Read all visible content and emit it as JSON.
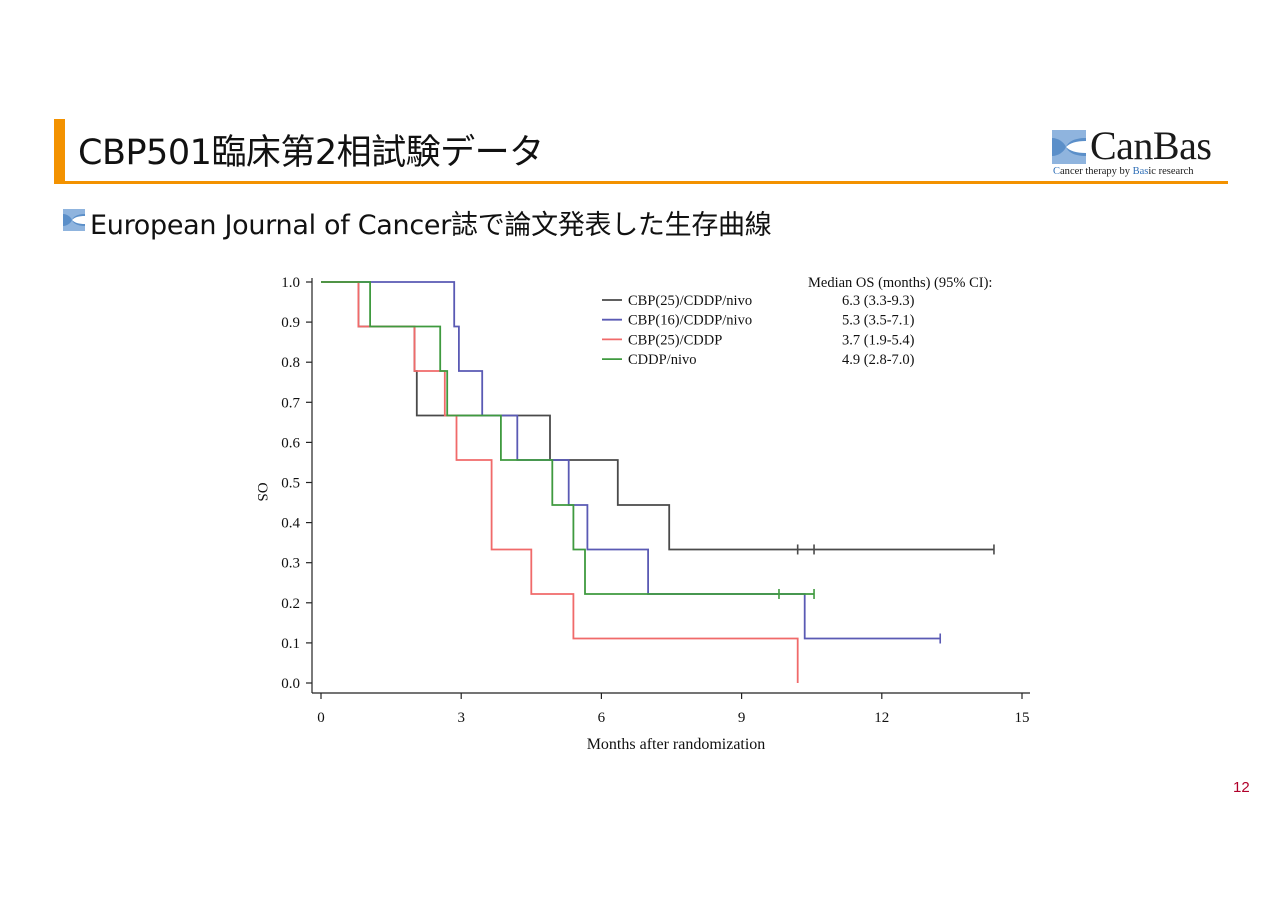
{
  "slide": {
    "title": "CBP501臨床第2相試験データ",
    "subtitle": "European Journal of Cancer誌で論文発表した生存曲線",
    "page_number": "12"
  },
  "logo": {
    "name": "CanBas",
    "tagline_prefix": "C",
    "tagline_1": "an",
    "tagline_2": "cer therapy by ",
    "tagline_3": "Bas",
    "tagline_4": "ic research",
    "accent_color": "#2f6fb7"
  },
  "chart_data": {
    "type": "line",
    "subtype": "kaplan-meier",
    "xlabel": "Months after randomization",
    "ylabel": "OS",
    "xlim": [
      0,
      15
    ],
    "ylim": [
      0,
      1
    ],
    "xticks": [
      0,
      3,
      6,
      9,
      12,
      15
    ],
    "yticks": [
      0.0,
      0.1,
      0.2,
      0.3,
      0.4,
      0.5,
      0.6,
      0.7,
      0.8,
      0.9,
      1.0
    ],
    "ytick_labels": [
      "0.0",
      "0.1",
      "0.2",
      "0.3",
      "0.4",
      "0.5",
      "0.6",
      "0.7",
      "0.8",
      "0.9",
      "1.0"
    ],
    "grid": false,
    "legend_header": "Median OS (months) (95% CI):",
    "legend_position": "top-right",
    "series": [
      {
        "name": "CBP(25)/CDDP/nivo",
        "median_os": "6.3 (3.3-9.3)",
        "color": "#4a4a4a",
        "points": [
          [
            0,
            1
          ],
          [
            0.8,
            1
          ],
          [
            0.8,
            0.889
          ],
          [
            2.0,
            0.889
          ],
          [
            2.0,
            0.778
          ],
          [
            2.05,
            0.778
          ],
          [
            2.05,
            0.667
          ],
          [
            4.9,
            0.667
          ],
          [
            4.9,
            0.556
          ],
          [
            6.35,
            0.556
          ],
          [
            6.35,
            0.444
          ],
          [
            7.45,
            0.444
          ],
          [
            7.45,
            0.333
          ],
          [
            14.4,
            0.333
          ]
        ],
        "censored": [
          [
            10.2,
            0.333
          ],
          [
            10.55,
            0.333
          ],
          [
            14.4,
            0.333
          ]
        ]
      },
      {
        "name": "CBP(16)/CDDP/nivo",
        "median_os": "5.3 (3.5-7.1)",
        "color": "#5a5ab4",
        "points": [
          [
            0,
            1
          ],
          [
            2.85,
            1
          ],
          [
            2.85,
            0.889
          ],
          [
            2.95,
            0.889
          ],
          [
            2.95,
            0.778
          ],
          [
            3.45,
            0.778
          ],
          [
            3.45,
            0.667
          ],
          [
            4.2,
            0.667
          ],
          [
            4.2,
            0.556
          ],
          [
            5.3,
            0.556
          ],
          [
            5.3,
            0.444
          ],
          [
            5.7,
            0.444
          ],
          [
            5.7,
            0.333
          ],
          [
            7.0,
            0.333
          ],
          [
            7.0,
            0.222
          ],
          [
            10.35,
            0.222
          ],
          [
            10.35,
            0.111
          ],
          [
            13.25,
            0.111
          ]
        ],
        "censored": [
          [
            13.25,
            0.111
          ]
        ]
      },
      {
        "name": "CBP(25)/CDDP",
        "median_os": "3.7 (1.9-5.4)",
        "color": "#f06a6a",
        "points": [
          [
            0,
            1
          ],
          [
            0.8,
            1
          ],
          [
            0.8,
            0.889
          ],
          [
            2.0,
            0.889
          ],
          [
            2.0,
            0.778
          ],
          [
            2.65,
            0.778
          ],
          [
            2.65,
            0.667
          ],
          [
            2.9,
            0.667
          ],
          [
            2.9,
            0.556
          ],
          [
            3.65,
            0.556
          ],
          [
            3.65,
            0.333
          ],
          [
            4.5,
            0.333
          ],
          [
            4.5,
            0.222
          ],
          [
            5.4,
            0.222
          ],
          [
            5.4,
            0.111
          ],
          [
            10.2,
            0.111
          ],
          [
            10.2,
            0.0
          ]
        ],
        "censored": []
      },
      {
        "name": "CDDP/nivo",
        "median_os": "4.9 (2.8-7.0)",
        "color": "#3f9a3f",
        "points": [
          [
            0,
            1
          ],
          [
            1.05,
            1
          ],
          [
            1.05,
            0.889
          ],
          [
            2.55,
            0.889
          ],
          [
            2.55,
            0.778
          ],
          [
            2.7,
            0.778
          ],
          [
            2.7,
            0.667
          ],
          [
            3.85,
            0.667
          ],
          [
            3.85,
            0.556
          ],
          [
            4.95,
            0.556
          ],
          [
            4.95,
            0.444
          ],
          [
            5.4,
            0.444
          ],
          [
            5.4,
            0.333
          ],
          [
            5.65,
            0.333
          ],
          [
            5.65,
            0.222
          ],
          [
            10.55,
            0.222
          ]
        ],
        "censored": [
          [
            9.8,
            0.222
          ],
          [
            10.55,
            0.222
          ]
        ]
      }
    ]
  }
}
